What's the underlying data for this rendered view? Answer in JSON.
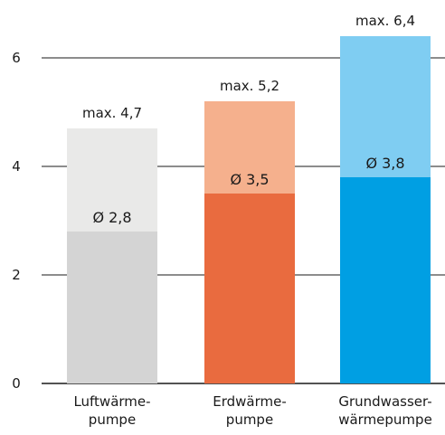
{
  "chart_data": {
    "type": "bar",
    "title": "",
    "xlabel": "",
    "ylabel": "",
    "ylim": [
      0,
      6.4
    ],
    "yticks": [
      "0",
      "2",
      "4",
      "6"
    ],
    "grid": "horizontal",
    "categories": [
      [
        "Luftwärme-",
        "pumpe"
      ],
      [
        "Erdwärme-",
        "pumpe"
      ],
      [
        "Grundwasser-",
        "wärmepumpe"
      ]
    ],
    "series": [
      {
        "values": [
          2.8,
          3.5,
          3.8
        ],
        "labels": [
          "Ø 2,8",
          "Ø 3,5",
          "Ø 3,8"
        ]
      },
      {
        "values": [
          4.7,
          5.2,
          6.4
        ],
        "labels": [
          "max. 4,7",
          "max. 5,2",
          "max. 6,4"
        ]
      }
    ],
    "colors": {
      "avg": [
        "#d4d4d4",
        "#e96b3f",
        "#009fe3"
      ],
      "max": [
        "#e9e9e8",
        "#f5b08d",
        "#7fcdf2"
      ],
      "grid": "#1a1a1a",
      "text": "#1a1a1a"
    }
  }
}
